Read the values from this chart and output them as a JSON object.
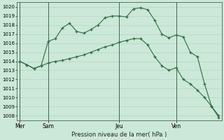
{
  "background_color": "#cce8d8",
  "grid_color": "#aad4bc",
  "line_color": "#2d6e3e",
  "title": "Pression niveau de la mer( hPa )",
  "ylim": [
    1007.5,
    1020.5
  ],
  "yticks": [
    1008,
    1009,
    1010,
    1011,
    1012,
    1013,
    1014,
    1015,
    1016,
    1017,
    1018,
    1019,
    1020
  ],
  "xtick_labels": [
    "Mer",
    "Sam",
    "Jeu",
    "Ven"
  ],
  "xtick_positions": [
    0,
    2,
    7,
    11
  ],
  "vline_x": [
    0,
    2,
    7,
    11
  ],
  "xlim": [
    -0.2,
    14.2
  ],
  "line1_x": [
    0,
    0.5,
    1.0,
    1.5,
    2.0,
    2.5,
    3.0,
    3.5,
    4.0,
    4.5,
    5.0,
    5.5,
    6.0,
    6.5,
    7.0,
    7.5,
    8.0,
    8.5,
    9.0,
    9.5,
    10.0,
    10.5,
    11.0,
    11.5,
    12.0,
    12.5,
    13.0,
    13.5,
    14.0
  ],
  "line1_y": [
    1014.0,
    1013.6,
    1013.2,
    1013.5,
    1016.2,
    1016.5,
    1017.7,
    1018.2,
    1017.3,
    1017.1,
    1017.5,
    1018.0,
    1018.8,
    1019.0,
    1019.0,
    1018.9,
    1019.8,
    1019.9,
    1019.7,
    1018.5,
    1017.0,
    1016.6,
    1016.9,
    1016.7,
    1015.0,
    1014.5,
    1011.5,
    1009.0,
    1008.0
  ],
  "line2_x": [
    0,
    0.5,
    1.0,
    1.5,
    2.0,
    2.5,
    3.0,
    3.5,
    4.0,
    4.5,
    5.0,
    5.5,
    6.0,
    6.5,
    7.0,
    7.5,
    8.0,
    8.5,
    9.0,
    9.5,
    10.0,
    10.5,
    11.0,
    11.5,
    12.0,
    12.5,
    13.0,
    13.5,
    14.0
  ],
  "line2_y": [
    1014.0,
    1013.6,
    1013.2,
    1013.5,
    1013.8,
    1014.0,
    1014.1,
    1014.3,
    1014.5,
    1014.7,
    1015.0,
    1015.3,
    1015.6,
    1015.8,
    1016.1,
    1016.3,
    1016.5,
    1016.5,
    1015.8,
    1014.5,
    1013.5,
    1013.0,
    1013.3,
    1012.0,
    1011.5,
    1010.8,
    1010.0,
    1009.0,
    1007.8
  ],
  "figsize": [
    3.2,
    2.0
  ],
  "dpi": 100
}
